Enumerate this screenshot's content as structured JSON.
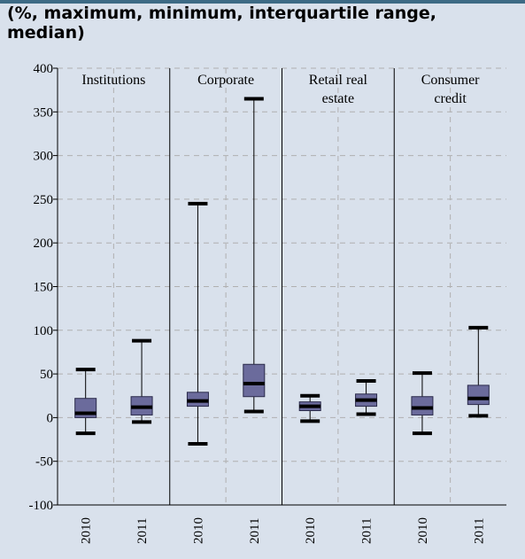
{
  "subtitle": "(%, maximum, minimum, interquartile range, median)",
  "colors": {
    "background": "#d9e1ec",
    "topbar": "#3d6a85",
    "box_fill": "#6b6b9c",
    "grid": "#b0b0b0",
    "axis": "#000000"
  },
  "chart_data": {
    "type": "boxplot",
    "title": "",
    "subtitle": "(%, maximum, minimum, interquartile range, median)",
    "ylim": [
      -100,
      400
    ],
    "yticks": [
      -100,
      -50,
      0,
      50,
      100,
      150,
      200,
      250,
      300,
      350,
      400
    ],
    "grid": true,
    "panels": [
      {
        "label_lines": [
          "Institutions"
        ],
        "boxes": [
          {
            "year": "2010",
            "min": -18,
            "q1": 0,
            "median": 5,
            "q3": 22,
            "max": 55
          },
          {
            "year": "2011",
            "min": -5,
            "q1": 3,
            "median": 12,
            "q3": 24,
            "max": 88
          }
        ]
      },
      {
        "label_lines": [
          "Corporate"
        ],
        "boxes": [
          {
            "year": "2010",
            "min": -30,
            "q1": 13,
            "median": 19,
            "q3": 29,
            "max": 245
          },
          {
            "year": "2011",
            "min": 7,
            "q1": 24,
            "median": 39,
            "q3": 61,
            "max": 365
          }
        ]
      },
      {
        "label_lines": [
          "Retail real",
          "estate"
        ],
        "boxes": [
          {
            "year": "2010",
            "min": -4,
            "q1": 8,
            "median": 13,
            "q3": 18,
            "max": 25
          },
          {
            "year": "2011",
            "min": 4,
            "q1": 13,
            "median": 20,
            "q3": 27,
            "max": 42
          }
        ]
      },
      {
        "label_lines": [
          "Consumer",
          "credit"
        ],
        "boxes": [
          {
            "year": "2010",
            "min": -18,
            "q1": 3,
            "median": 11,
            "q3": 24,
            "max": 51
          },
          {
            "year": "2011",
            "min": 2,
            "q1": 15,
            "median": 22,
            "q3": 37,
            "max": 103
          }
        ]
      }
    ]
  }
}
